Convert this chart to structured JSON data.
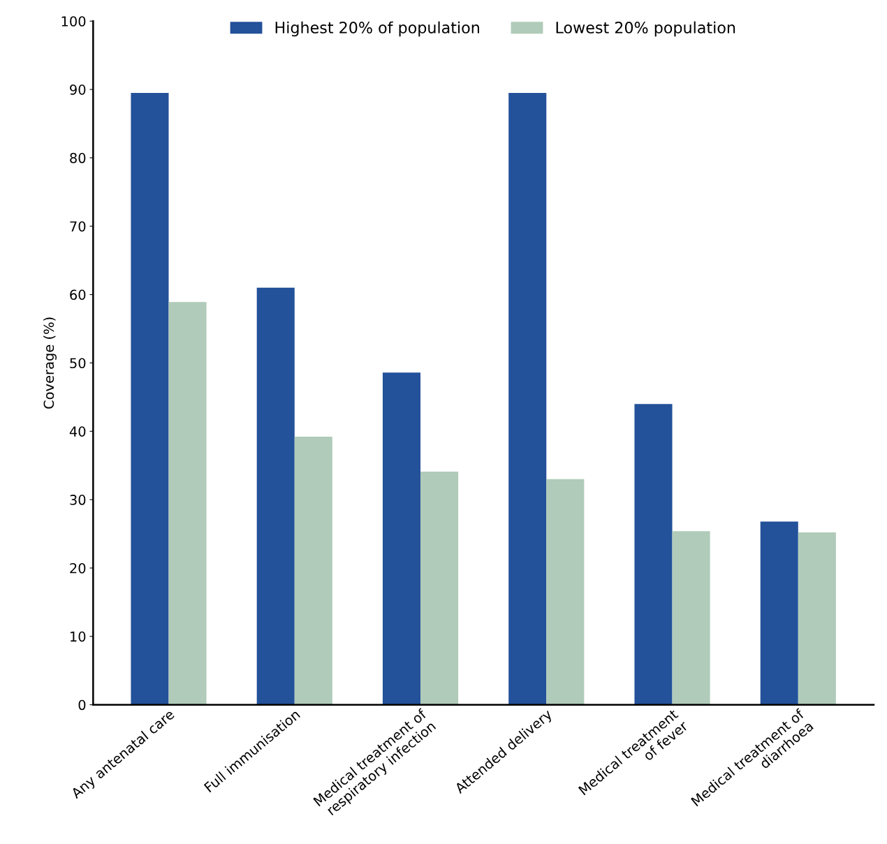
{
  "chart_data": {
    "type": "bar",
    "ylabel": "Coverage (%)",
    "categories": [
      "Any antenatal care",
      "Full immunisation",
      "Medical treatment of\nrespiratory infection",
      "Attended delivery",
      "Medical treatment\nof fever",
      "Medical treatment of\ndiarrhoea"
    ],
    "series": [
      {
        "name": "Highest 20% of population",
        "color": "#23519a",
        "values": [
          89.5,
          61.0,
          48.6,
          89.5,
          44.0,
          26.8
        ]
      },
      {
        "name": "Lowest 20% population",
        "color": "#b0cbb9",
        "values": [
          58.9,
          39.2,
          34.1,
          33.0,
          25.4,
          25.2
        ]
      }
    ],
    "ylim": [
      0,
      100
    ],
    "yticks": [
      0,
      10,
      20,
      30,
      40,
      50,
      60,
      70,
      80,
      90,
      100
    ],
    "grid": false,
    "legend": "top"
  }
}
